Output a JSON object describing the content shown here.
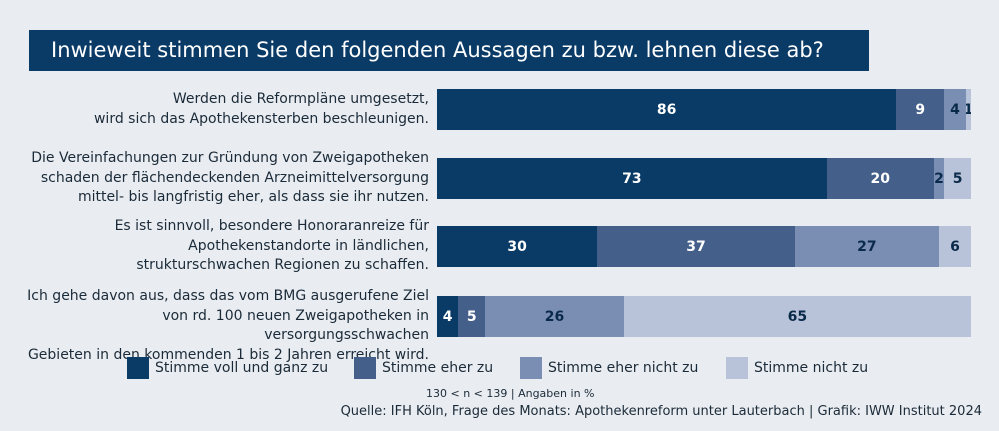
{
  "title": "Inwieweit stimmen Sie den folgenden Aussagen zu bzw. lehnen diese ab?",
  "chart_data": {
    "type": "bar",
    "orientation": "horizontal",
    "stacked": true,
    "title": "Inwieweit stimmen Sie den folgenden Aussagen zu bzw. lehnen diese ab?",
    "categories": [
      [
        "Werden die Reformpläne umgesetzt,",
        "wird sich das Apothekensterben beschleunigen."
      ],
      [
        "Die Vereinfachungen zur Gründung von Zweigapotheken",
        "schaden der flächendeckenden Arzneimittelversorgung",
        "mittel- bis langfristig eher, als dass sie ihr nutzen."
      ],
      [
        "Es ist sinnvoll, besondere Honoraranreize für",
        "Apothekenstandorte in ländlichen,",
        "strukturschwachen Regionen zu schaffen."
      ],
      [
        "Ich gehe davon aus, dass das vom BMG ausgerufene Ziel",
        "von rd. 100 neuen Zweigapotheken in versorgungsschwachen",
        "Gebieten in den kommenden 1 bis 2 Jahren erreicht wird."
      ]
    ],
    "series": [
      {
        "name": "Stimme voll und ganz zu",
        "color": "#0a3a66",
        "text_color": "#ffffff",
        "values": [
          86,
          73,
          30,
          4
        ]
      },
      {
        "name": "Stimme eher zu",
        "color": "#44608a",
        "text_color": "#ffffff",
        "values": [
          9,
          20,
          37,
          5
        ]
      },
      {
        "name": "Stimme eher nicht zu",
        "color": "#7a8eb3",
        "text_color": "#0a2a4a",
        "values": [
          4,
          2,
          27,
          26
        ]
      },
      {
        "name": "Stimme nicht zu",
        "color": "#b8c3d9",
        "text_color": "#0a2a4a",
        "values": [
          1,
          5,
          6,
          65
        ]
      }
    ],
    "xlim": [
      0,
      100
    ],
    "legend_position": "bottom",
    "grid": false
  },
  "note": "130 < n < 139 | Angaben in %",
  "source": "Quelle: IFH Köln, Frage des Monats: Apothekenreform unter Lauterbach | Grafik: IWW Institut 2024"
}
